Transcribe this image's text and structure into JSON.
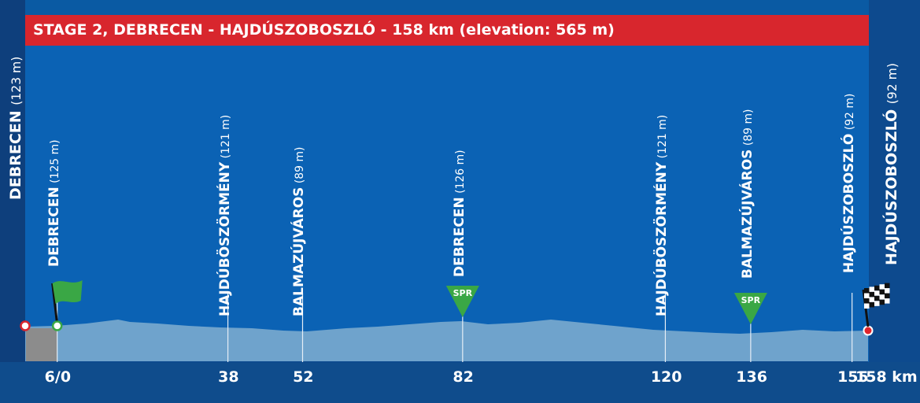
{
  "title": "STAGE 2, DEBRECEN - HAJDÚSZOBOSZLÓ - 158 km (elevation: 565 m)",
  "start": {
    "name": "DEBRECEN",
    "elev": "(123 m)"
  },
  "finish": {
    "name": "HAJDÚSZOBOSZLÓ",
    "elev": "(92 m)"
  },
  "waypoints": [
    {
      "name": "DEBRECEN",
      "elev": "(125 m)",
      "km": 6,
      "km_label": "6/0",
      "flag": "start"
    },
    {
      "name": "HAJDÚBÖSZÖRMÉNY",
      "elev": "(121 m)",
      "km": 38,
      "km_label": "38"
    },
    {
      "name": "BALMAZÚJVÁROS",
      "elev": "(89 m)",
      "km": 52,
      "km_label": "52"
    },
    {
      "name": "DEBRECEN",
      "elev": "(126 m)",
      "km": 82,
      "km_label": "82",
      "sprint": "SPR"
    },
    {
      "name": "HAJDÚBÖSZÖRMÉNY",
      "elev": "(121 m)",
      "km": 120,
      "km_label": "120"
    },
    {
      "name": "BALMAZÚJVÁROS",
      "elev": "(89 m)",
      "km": 136,
      "km_label": "136",
      "sprint": "SPR"
    },
    {
      "name": "HAJDÚSZOBOSZLÓ",
      "elev": "(92 m)",
      "km": 155,
      "km_label": "155"
    }
  ],
  "end_km_label": "158 km",
  "colors": {
    "banner": "#d8262d",
    "profile": "#6fa3cc",
    "neutral": "#8c8c8c",
    "sprint": "#3aa745",
    "flag": "#3aa745"
  }
}
